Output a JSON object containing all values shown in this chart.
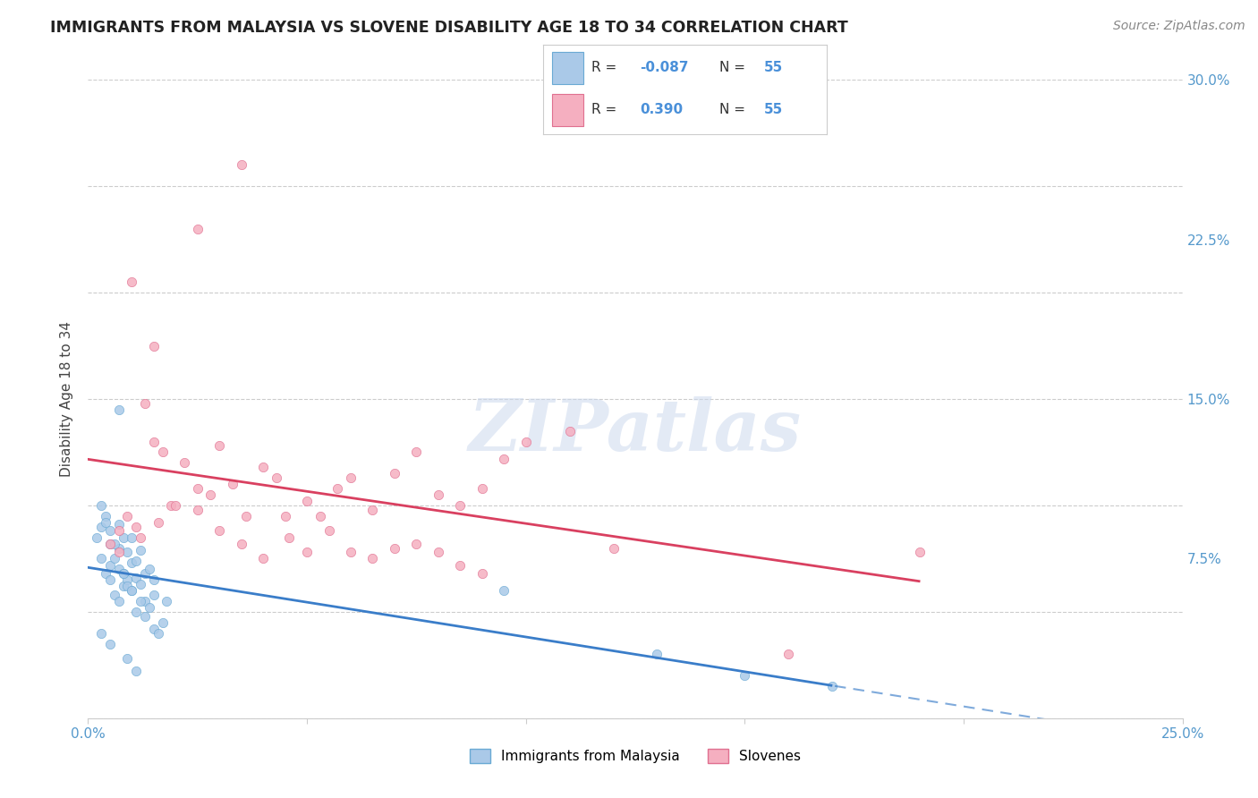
{
  "title": "IMMIGRANTS FROM MALAYSIA VS SLOVENE DISABILITY AGE 18 TO 34 CORRELATION CHART",
  "source": "Source: ZipAtlas.com",
  "ylabel": "Disability Age 18 to 34",
  "x_min": 0.0,
  "x_max": 0.25,
  "y_min": 0.0,
  "y_max": 0.3,
  "x_ticks": [
    0.0,
    0.05,
    0.1,
    0.15,
    0.2,
    0.25
  ],
  "y_ticks": [
    0.0,
    0.075,
    0.15,
    0.225,
    0.3
  ],
  "y_tick_labels": [
    "",
    "7.5%",
    "15.0%",
    "22.5%",
    "30.0%"
  ],
  "r_malaysia": -0.087,
  "r_slovene": 0.39,
  "n": 55,
  "malaysia_scatter_color": "#aac9e8",
  "malaysia_edge_color": "#6aaad4",
  "slovene_scatter_color": "#f5afc0",
  "slovene_edge_color": "#e07090",
  "malaysia_line_color": "#3a7dc9",
  "slovene_line_color": "#d94060",
  "watermark_color": "#ccd9ee",
  "malaysia_x": [
    0.002,
    0.003,
    0.003,
    0.004,
    0.004,
    0.005,
    0.005,
    0.005,
    0.006,
    0.006,
    0.007,
    0.007,
    0.007,
    0.008,
    0.008,
    0.008,
    0.009,
    0.009,
    0.01,
    0.01,
    0.01,
    0.011,
    0.011,
    0.012,
    0.012,
    0.013,
    0.013,
    0.014,
    0.015,
    0.015,
    0.003,
    0.004,
    0.005,
    0.006,
    0.007,
    0.008,
    0.009,
    0.01,
    0.011,
    0.012,
    0.013,
    0.014,
    0.015,
    0.016,
    0.017,
    0.018,
    0.095,
    0.13,
    0.15,
    0.17,
    0.003,
    0.005,
    0.007,
    0.009,
    0.011
  ],
  "malaysia_y": [
    0.085,
    0.09,
    0.075,
    0.095,
    0.068,
    0.082,
    0.072,
    0.065,
    0.075,
    0.058,
    0.07,
    0.08,
    0.055,
    0.068,
    0.085,
    0.062,
    0.065,
    0.078,
    0.073,
    0.06,
    0.085,
    0.074,
    0.066,
    0.079,
    0.063,
    0.068,
    0.055,
    0.07,
    0.065,
    0.058,
    0.1,
    0.092,
    0.088,
    0.082,
    0.091,
    0.068,
    0.062,
    0.06,
    0.05,
    0.055,
    0.048,
    0.052,
    0.042,
    0.04,
    0.045,
    0.055,
    0.06,
    0.03,
    0.02,
    0.015,
    0.04,
    0.035,
    0.145,
    0.028,
    0.022
  ],
  "slovene_x": [
    0.005,
    0.007,
    0.009,
    0.011,
    0.013,
    0.015,
    0.017,
    0.019,
    0.022,
    0.025,
    0.028,
    0.03,
    0.033,
    0.036,
    0.04,
    0.043,
    0.046,
    0.05,
    0.053,
    0.057,
    0.06,
    0.065,
    0.07,
    0.075,
    0.08,
    0.085,
    0.09,
    0.095,
    0.1,
    0.11,
    0.007,
    0.012,
    0.016,
    0.02,
    0.025,
    0.03,
    0.035,
    0.04,
    0.045,
    0.05,
    0.055,
    0.06,
    0.065,
    0.07,
    0.075,
    0.08,
    0.085,
    0.09,
    0.12,
    0.16,
    0.01,
    0.015,
    0.025,
    0.035,
    0.19
  ],
  "slovene_y": [
    0.082,
    0.088,
    0.095,
    0.09,
    0.148,
    0.13,
    0.125,
    0.1,
    0.12,
    0.108,
    0.105,
    0.128,
    0.11,
    0.095,
    0.118,
    0.113,
    0.085,
    0.102,
    0.095,
    0.108,
    0.113,
    0.098,
    0.115,
    0.125,
    0.105,
    0.1,
    0.108,
    0.122,
    0.13,
    0.135,
    0.078,
    0.085,
    0.092,
    0.1,
    0.098,
    0.088,
    0.082,
    0.075,
    0.095,
    0.078,
    0.088,
    0.078,
    0.075,
    0.08,
    0.082,
    0.078,
    0.072,
    0.068,
    0.08,
    0.03,
    0.205,
    0.175,
    0.23,
    0.26,
    0.078
  ]
}
